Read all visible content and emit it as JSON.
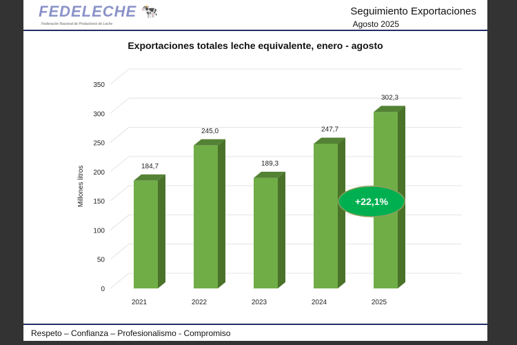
{
  "header": {
    "logo_text": "FEDELECHE",
    "logo_subtitle": "Federación Nacional de Productores de Leche",
    "title": "Seguimiento Exportaciones",
    "subtitle": "Agosto 2025"
  },
  "footer": {
    "text": "Respeto – Confianza – Profesionalismo - Compromiso"
  },
  "chart_data": {
    "type": "bar",
    "title": "Exportaciones totales leche equivalente, enero - agosto",
    "ylabel": "Millones litros",
    "xlabel": "",
    "categories": [
      "2021",
      "2022",
      "2023",
      "2024",
      "2025"
    ],
    "values": [
      184.7,
      245.0,
      189.3,
      247.7,
      302.3
    ],
    "data_labels": [
      "184,7",
      "245,0",
      "189,3",
      "247,7",
      "302,3"
    ],
    "yticks": [
      "0",
      "50",
      "100",
      "150",
      "200",
      "250",
      "300",
      "350"
    ],
    "ylim": [
      0,
      350
    ],
    "grid": true,
    "style": "3d-column",
    "bar_color": "#70ad47",
    "annotation": {
      "text": "+22,1%",
      "color": "#00b050"
    }
  }
}
